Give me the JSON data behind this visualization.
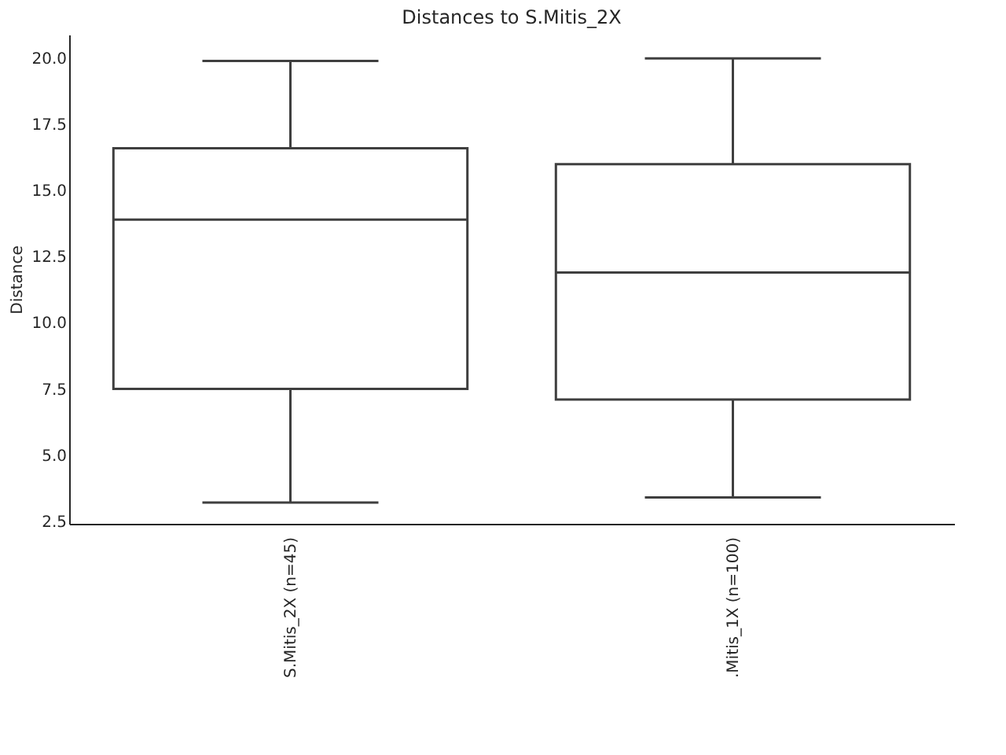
{
  "chart_data": {
    "type": "box",
    "title": "Distances to S.Mitis_2X",
    "ylabel": "Distance",
    "categories": [
      "S.Mitis_2X (n=45)",
      ".Mitis_1X (n=100)"
    ],
    "boxes": [
      {
        "low": 3.2,
        "q1": 7.5,
        "median": 13.9,
        "q3": 16.6,
        "high": 19.9
      },
      {
        "low": 3.4,
        "q1": 7.1,
        "median": 11.9,
        "q3": 16.0,
        "high": 20.0
      }
    ],
    "color": "#3f3f3f",
    "ylim": [
      2.4,
      20.9
    ],
    "yticks": [
      {
        "value": 2.5,
        "label": "2.5"
      },
      {
        "value": 5,
        "label": "5.0"
      },
      {
        "value": 7.5,
        "label": "7.5"
      },
      {
        "value": 10,
        "label": "10.0"
      },
      {
        "value": 12.5,
        "label": "12.5"
      },
      {
        "value": 15,
        "label": "15.0"
      },
      {
        "value": 17.5,
        "label": "17.5"
      },
      {
        "value": 20,
        "label": "20.0"
      }
    ],
    "grid": false
  }
}
